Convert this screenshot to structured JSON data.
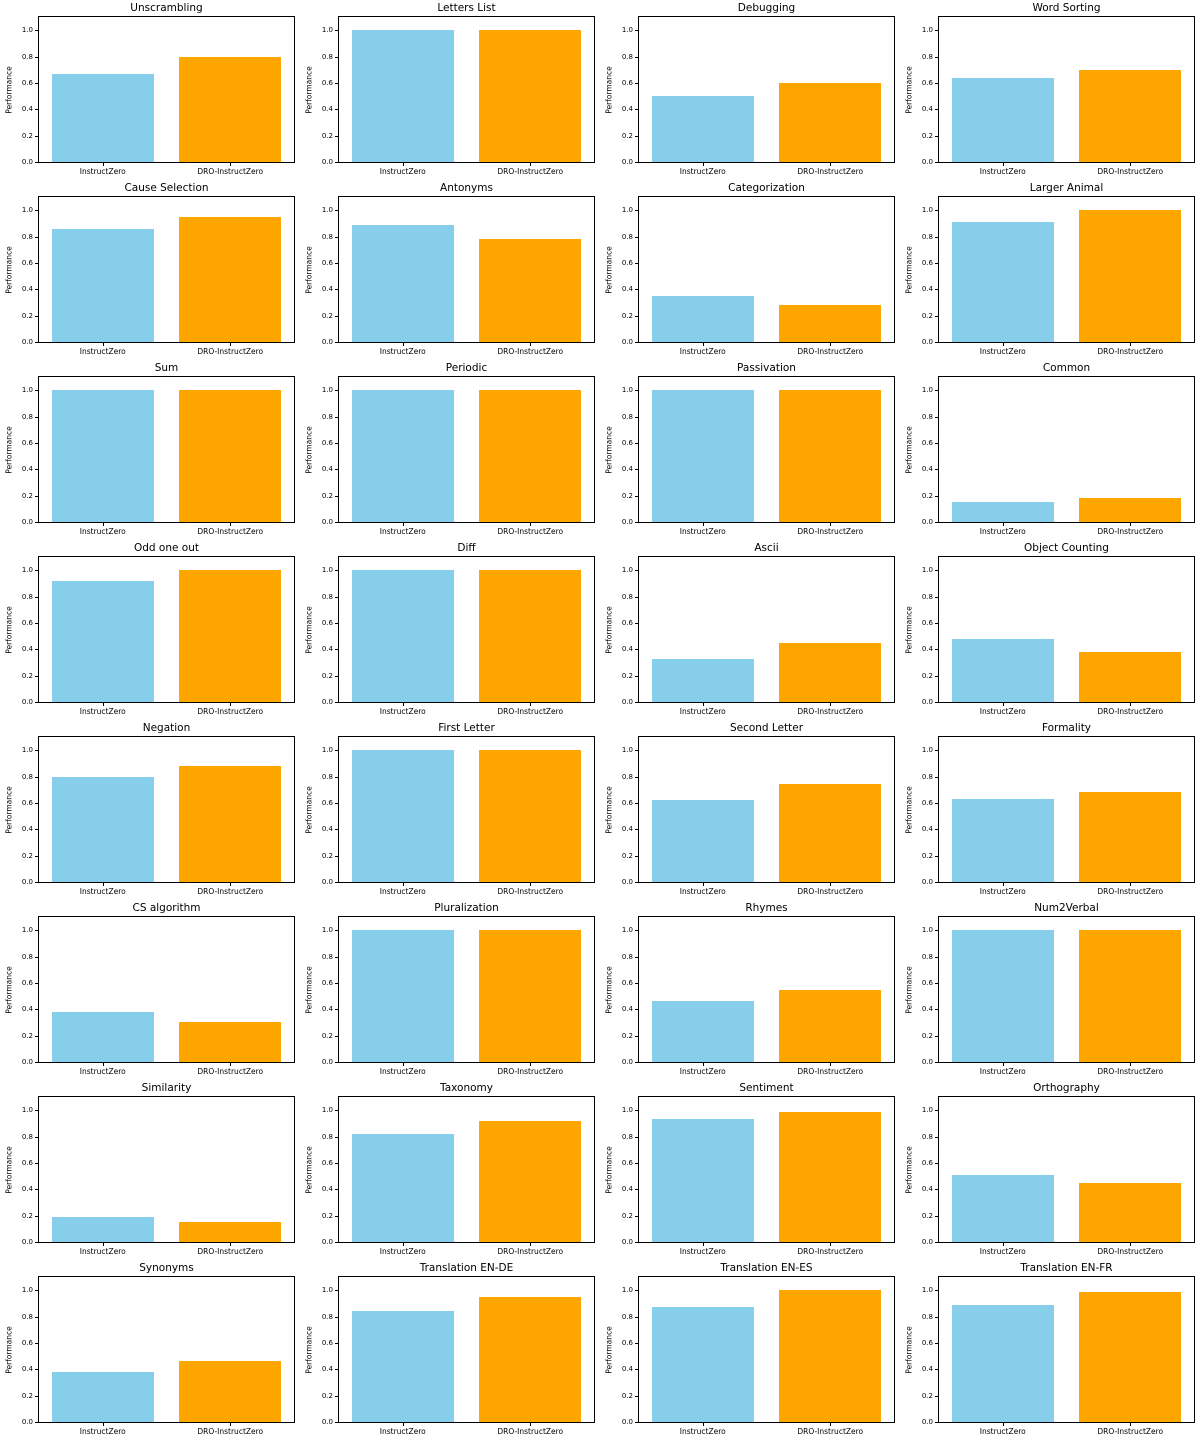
{
  "figure": {
    "rows": 8,
    "cols": 4,
    "background": "#ffffff",
    "spine_color": "#000000"
  },
  "chart_data": {
    "type": "bar",
    "shared": {
      "categories": [
        "InstructZero",
        "DRO-InstructZero"
      ],
      "series_colors": [
        "#87CEEB",
        "#FFA500"
      ],
      "ylabel": "Performance",
      "yticks": [
        0.0,
        0.2,
        0.4,
        0.6,
        0.8,
        1.0
      ],
      "ylim": [
        0,
        1.1
      ],
      "grid": false,
      "legend": "none"
    },
    "charts": [
      {
        "title": "Unscrambling",
        "values": [
          0.67,
          0.8
        ]
      },
      {
        "title": "Letters List",
        "values": [
          1.0,
          1.0
        ]
      },
      {
        "title": "Debugging",
        "values": [
          0.5,
          0.6
        ]
      },
      {
        "title": "Word Sorting",
        "values": [
          0.64,
          0.7
        ]
      },
      {
        "title": "Cause Selection",
        "values": [
          0.86,
          0.95
        ]
      },
      {
        "title": "Antonyms",
        "values": [
          0.89,
          0.78
        ]
      },
      {
        "title": "Categorization",
        "values": [
          0.35,
          0.28
        ]
      },
      {
        "title": "Larger Animal",
        "values": [
          0.91,
          1.0
        ]
      },
      {
        "title": "Sum",
        "values": [
          1.0,
          1.0
        ]
      },
      {
        "title": "Periodic",
        "values": [
          1.0,
          1.0
        ]
      },
      {
        "title": "Passivation",
        "values": [
          1.0,
          1.0
        ]
      },
      {
        "title": "Common",
        "values": [
          0.15,
          0.18
        ]
      },
      {
        "title": "Odd one out",
        "values": [
          0.92,
          1.0
        ]
      },
      {
        "title": "Diff",
        "values": [
          1.0,
          1.0
        ]
      },
      {
        "title": "Ascii",
        "values": [
          0.33,
          0.45
        ]
      },
      {
        "title": "Object Counting",
        "values": [
          0.48,
          0.38
        ]
      },
      {
        "title": "Negation",
        "values": [
          0.8,
          0.88
        ]
      },
      {
        "title": "First Letter",
        "values": [
          1.0,
          1.0
        ]
      },
      {
        "title": "Second Letter",
        "values": [
          0.62,
          0.74
        ]
      },
      {
        "title": "Formality",
        "values": [
          0.63,
          0.68
        ]
      },
      {
        "title": "CS algorithm",
        "values": [
          0.38,
          0.3
        ]
      },
      {
        "title": "Pluralization",
        "values": [
          1.0,
          1.0
        ]
      },
      {
        "title": "Rhymes",
        "values": [
          0.46,
          0.55
        ]
      },
      {
        "title": "Num2Verbal",
        "values": [
          1.0,
          1.0
        ]
      },
      {
        "title": "Similarity",
        "values": [
          0.19,
          0.15
        ]
      },
      {
        "title": "Taxonomy",
        "values": [
          0.82,
          0.92
        ]
      },
      {
        "title": "Sentiment",
        "values": [
          0.93,
          0.99
        ]
      },
      {
        "title": "Orthography",
        "values": [
          0.51,
          0.45
        ]
      },
      {
        "title": "Synonyms",
        "values": [
          0.38,
          0.46
        ]
      },
      {
        "title": "Translation EN-DE",
        "values": [
          0.84,
          0.95
        ]
      },
      {
        "title": "Translation EN-ES",
        "values": [
          0.87,
          1.0
        ]
      },
      {
        "title": "Translation EN-FR",
        "values": [
          0.89,
          0.99
        ]
      }
    ]
  }
}
